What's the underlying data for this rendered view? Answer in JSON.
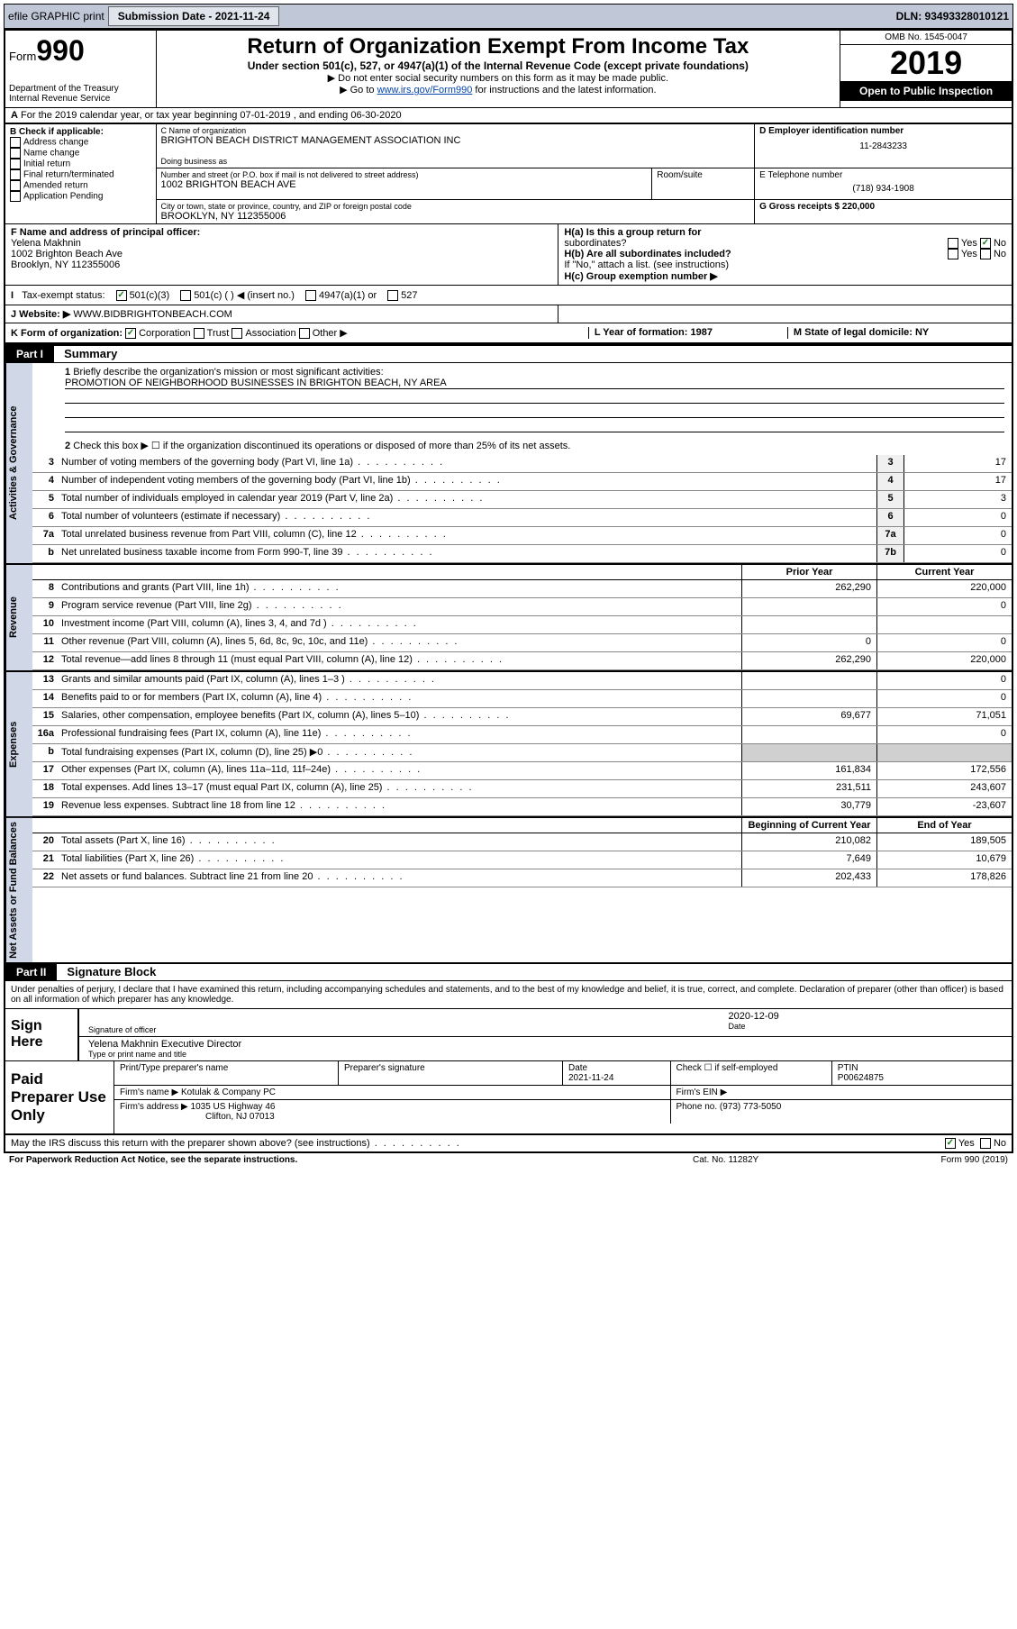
{
  "topbar": {
    "efile": "efile GRAPHIC print",
    "submission_label": "Submission Date - 2021-11-24",
    "dln": "DLN: 93493328010121"
  },
  "header": {
    "form_label": "Form",
    "form_num": "990",
    "dept": "Department of the Treasury\nInternal Revenue Service",
    "title": "Return of Organization Exempt From Income Tax",
    "sub1": "Under section 501(c), 527, or 4947(a)(1) of the Internal Revenue Code (except private foundations)",
    "sub2": "▶ Do not enter social security numbers on this form as it may be made public.",
    "sub3_pre": "▶ Go to ",
    "sub3_link": "www.irs.gov/Form990",
    "sub3_post": " for instructions and the latest information.",
    "omb": "OMB No. 1545-0047",
    "year": "2019",
    "public": "Open to Public Inspection"
  },
  "rowA": {
    "prefix": "A",
    "text": "For the 2019 calendar year, or tax year beginning 07-01-2019    , and ending 06-30-2020"
  },
  "boxB": {
    "hdr": "B Check if applicable:",
    "items": [
      "Address change",
      "Name change",
      "Initial return",
      "Final return/terminated",
      "Amended return",
      "Application Pending"
    ]
  },
  "boxC": {
    "label": "C Name of organization",
    "name": "BRIGHTON BEACH DISTRICT MANAGEMENT ASSOCIATION INC",
    "dba_label": "Doing business as",
    "addr_label": "Number and street (or P.O. box if mail is not delivered to street address)",
    "room_label": "Room/suite",
    "addr": "1002 BRIGHTON BEACH AVE",
    "city_label": "City or town, state or province, country, and ZIP or foreign postal code",
    "city": "BROOKLYN, NY  112355006"
  },
  "boxD": {
    "label": "D Employer identification number",
    "value": "11-2843233"
  },
  "boxE": {
    "label": "E Telephone number",
    "value": "(718) 934-1908"
  },
  "boxG": {
    "label": "G Gross receipts $ 220,000"
  },
  "boxF": {
    "label": "F Name and address of principal officer:",
    "name": "Yelena Makhnin",
    "addr1": "1002 Brighton Beach Ave",
    "addr2": "Brooklyn, NY  112355006"
  },
  "boxH": {
    "a_label": "H(a)  Is this a group return for",
    "a_label2": "subordinates?",
    "a_yes": "Yes",
    "a_no": "No",
    "b_label": "H(b)  Are all subordinates included?",
    "b_note": "If \"No,\" attach a list. (see instructions)",
    "c_label": "H(c)  Group exemption number ▶"
  },
  "taxStatus": {
    "label": "Tax-exempt status:",
    "opts": [
      "501(c)(3)",
      "501(c) (   ) ◀ (insert no.)",
      "4947(a)(1) or",
      "527"
    ]
  },
  "boxJ": {
    "label": "J    Website: ▶",
    "value": "WWW.BIDBRIGHTONBEACH.COM"
  },
  "boxK": {
    "label": "K Form of organization:",
    "opts": [
      "Corporation",
      "Trust",
      "Association",
      "Other ▶"
    ]
  },
  "boxL": {
    "label": "L Year of formation: 1987"
  },
  "boxM": {
    "label": "M State of legal domicile: NY"
  },
  "part1": {
    "tag": "Part I",
    "title": "Summary",
    "line1_num": "1",
    "line1": "Briefly describe the organization's mission or most significant activities:",
    "mission": "PROMOTION OF NEIGHBORHOOD BUSINESSES IN BRIGHTON BEACH, NY AREA",
    "line2_num": "2",
    "line2": "Check this box ▶ ☐  if the organization discontinued its operations or disposed of more than 25% of its net assets."
  },
  "gov": {
    "vlabel": "Activities & Governance",
    "rows": [
      {
        "n": "3",
        "d": "Number of voting members of the governing body (Part VI, line 1a)",
        "box": "3",
        "v": "17"
      },
      {
        "n": "4",
        "d": "Number of independent voting members of the governing body (Part VI, line 1b)",
        "box": "4",
        "v": "17"
      },
      {
        "n": "5",
        "d": "Total number of individuals employed in calendar year 2019 (Part V, line 2a)",
        "box": "5",
        "v": "3"
      },
      {
        "n": "6",
        "d": "Total number of volunteers (estimate if necessary)",
        "box": "6",
        "v": "0"
      },
      {
        "n": "7a",
        "d": "Total unrelated business revenue from Part VIII, column (C), line 12",
        "box": "7a",
        "v": "0"
      },
      {
        "n": "b",
        "d": "Net unrelated business taxable income from Form 990-T, line 39",
        "box": "7b",
        "v": "0"
      }
    ]
  },
  "rev": {
    "vlabel": "Revenue",
    "hdr_prior": "Prior Year",
    "hdr_curr": "Current Year",
    "rows": [
      {
        "n": "8",
        "d": "Contributions and grants (Part VIII, line 1h)",
        "p": "262,290",
        "c": "220,000"
      },
      {
        "n": "9",
        "d": "Program service revenue (Part VIII, line 2g)",
        "p": "",
        "c": "0"
      },
      {
        "n": "10",
        "d": "Investment income (Part VIII, column (A), lines 3, 4, and 7d )",
        "p": "",
        "c": ""
      },
      {
        "n": "11",
        "d": "Other revenue (Part VIII, column (A), lines 5, 6d, 8c, 9c, 10c, and 11e)",
        "p": "0",
        "c": "0"
      },
      {
        "n": "12",
        "d": "Total revenue—add lines 8 through 11 (must equal Part VIII, column (A), line 12)",
        "p": "262,290",
        "c": "220,000"
      }
    ]
  },
  "exp": {
    "vlabel": "Expenses",
    "rows": [
      {
        "n": "13",
        "d": "Grants and similar amounts paid (Part IX, column (A), lines 1–3 )",
        "p": "",
        "c": "0"
      },
      {
        "n": "14",
        "d": "Benefits paid to or for members (Part IX, column (A), line 4)",
        "p": "",
        "c": "0"
      },
      {
        "n": "15",
        "d": "Salaries, other compensation, employee benefits (Part IX, column (A), lines 5–10)",
        "p": "69,677",
        "c": "71,051"
      },
      {
        "n": "16a",
        "d": "Professional fundraising fees (Part IX, column (A), line 11e)",
        "p": "",
        "c": "0"
      },
      {
        "n": "b",
        "d": "Total fundraising expenses (Part IX, column (D), line 25) ▶0",
        "p": "shade",
        "c": "shade"
      },
      {
        "n": "17",
        "d": "Other expenses (Part IX, column (A), lines 11a–11d, 11f–24e)",
        "p": "161,834",
        "c": "172,556"
      },
      {
        "n": "18",
        "d": "Total expenses. Add lines 13–17 (must equal Part IX, column (A), line 25)",
        "p": "231,511",
        "c": "243,607"
      },
      {
        "n": "19",
        "d": "Revenue less expenses. Subtract line 18 from line 12",
        "p": "30,779",
        "c": "-23,607"
      }
    ]
  },
  "net": {
    "vlabel": "Net Assets or Fund Balances",
    "hdr_prior": "Beginning of Current Year",
    "hdr_curr": "End of Year",
    "rows": [
      {
        "n": "20",
        "d": "Total assets (Part X, line 16)",
        "p": "210,082",
        "c": "189,505"
      },
      {
        "n": "21",
        "d": "Total liabilities (Part X, line 26)",
        "p": "7,649",
        "c": "10,679"
      },
      {
        "n": "22",
        "d": "Net assets or fund balances. Subtract line 21 from line 20",
        "p": "202,433",
        "c": "178,826"
      }
    ]
  },
  "part2": {
    "tag": "Part II",
    "title": "Signature Block",
    "penalty": "Under penalties of perjury, I declare that I have examined this return, including accompanying schedules and statements, and to the best of my knowledge and belief, it is true, correct, and complete. Declaration of preparer (other than officer) is based on all information of which preparer has any knowledge."
  },
  "sign": {
    "label": "Sign Here",
    "sig_label": "Signature of officer",
    "date": "2020-12-09",
    "date_label": "Date",
    "name": "Yelena Makhnin  Executive Director",
    "name_label": "Type or print name and title"
  },
  "prep": {
    "label": "Paid Preparer Use Only",
    "h1": "Print/Type preparer's name",
    "h2": "Preparer's signature",
    "h3": "Date",
    "date": "2021-11-24",
    "h4": "Check ☐ if self-employed",
    "h5": "PTIN",
    "ptin": "P00624875",
    "firm_label": "Firm's name     ▶",
    "firm": "Kotulak & Company PC",
    "ein_label": "Firm's EIN ▶",
    "addr_label": "Firm's address ▶",
    "addr1": "1035 US Highway 46",
    "addr2": "Clifton, NJ  07013",
    "phone_label": "Phone no. (973) 773-5050"
  },
  "discuss": {
    "text": "May the IRS discuss this return with the preparer shown above? (see instructions)",
    "yes": "Yes",
    "no": "No"
  },
  "footer": {
    "l": "For Paperwork Reduction Act Notice, see the separate instructions.",
    "m": "Cat. No. 11282Y",
    "r": "Form 990 (2019)"
  }
}
